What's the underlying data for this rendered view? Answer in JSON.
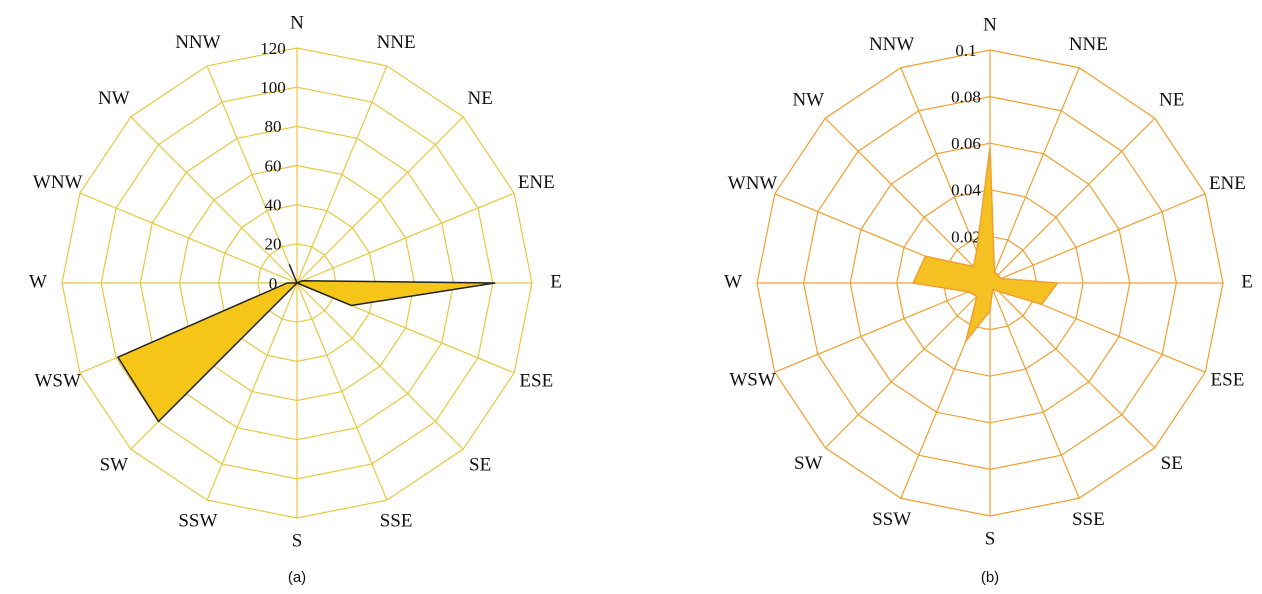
{
  "chart_data": [
    {
      "type": "radar",
      "caption": "(a)",
      "categories": [
        "N",
        "NNE",
        "NE",
        "ENE",
        "E",
        "ESE",
        "SE",
        "SSE",
        "S",
        "SSW",
        "SW",
        "WSW",
        "W",
        "WNW",
        "NW",
        "NNW"
      ],
      "values": [
        0,
        0,
        0,
        3,
        101,
        30,
        0,
        0,
        0,
        0,
        100,
        99,
        5,
        0,
        0,
        10
      ],
      "rlim": [
        0,
        120
      ],
      "rticks": [
        0,
        20,
        40,
        60,
        80,
        100,
        120
      ],
      "color": "#f5c518",
      "edge_color": "#222222",
      "grid_color": "#e8c840"
    },
    {
      "type": "radar",
      "caption": "(b)",
      "categories": [
        "N",
        "NNE",
        "NE",
        "ENE",
        "E",
        "ESE",
        "SE",
        "SSE",
        "S",
        "SSW",
        "SW",
        "WSW",
        "W",
        "WNW",
        "NW",
        "NNW"
      ],
      "values": [
        0.058,
        0.005,
        0.005,
        0.005,
        0.029,
        0.024,
        0.005,
        0.003,
        0.012,
        0.027,
        0.008,
        0.01,
        0.033,
        0.03,
        0.01,
        0.015
      ],
      "rlim": [
        0,
        0.1
      ],
      "rticks": [
        0,
        0.02,
        0.04,
        0.06,
        0.08,
        0.1
      ],
      "color": "#f5c022",
      "edge_color": "#f0a030",
      "grid_color": "#f0a030"
    }
  ]
}
